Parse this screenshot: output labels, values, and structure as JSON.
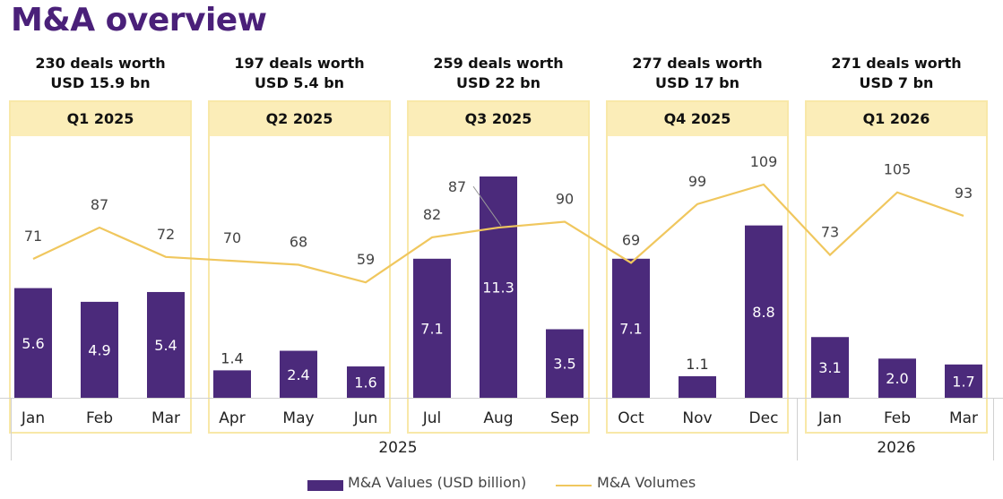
{
  "title": "M&A overview",
  "quarters": [
    {
      "label": "Q1 2025",
      "summary_line1": "230 deals worth",
      "summary_line2": "USD 15.9 bn"
    },
    {
      "label": "Q2 2025",
      "summary_line1": "197 deals worth",
      "summary_line2": "USD 5.4 bn"
    },
    {
      "label": "Q3 2025",
      "summary_line1": "259 deals worth",
      "summary_line2": "USD 22 bn"
    },
    {
      "label": "Q4 2025",
      "summary_line1": "277 deals worth",
      "summary_line2": "USD 17 bn"
    },
    {
      "label": "Q1 2026",
      "summary_line1": "271 deals worth",
      "summary_line2": "USD 7 bn"
    }
  ],
  "years": [
    "2025",
    "2026"
  ],
  "legend": {
    "bar_label": "M&A Values (USD billion)",
    "line_label": "M&A Volumes"
  },
  "colors": {
    "bar": "#4b2a7b",
    "line": "#f0c75e",
    "box_border": "#f8e8a8",
    "box_header": "#fbedb8",
    "title": "#4a2079"
  },
  "chart_data": {
    "type": "bar+line",
    "categories": [
      "Jan",
      "Feb",
      "Mar",
      "Apr",
      "May",
      "Jun",
      "Jul",
      "Aug",
      "Sep",
      "Oct",
      "Nov",
      "Dec",
      "Jan",
      "Feb",
      "Mar"
    ],
    "series": [
      {
        "name": "M&A Values (USD billion)",
        "type": "bar",
        "values": [
          "5.6",
          "4.9",
          "5.4",
          "1.4",
          "2.4",
          "1.6",
          "7.1",
          "11.3",
          "3.5",
          "7.1",
          "1.1",
          "8.8",
          "3.1",
          "2.0",
          "1.7"
        ]
      },
      {
        "name": "M&A Volumes",
        "type": "line",
        "values": [
          71,
          87,
          72,
          70,
          68,
          59,
          82,
          87,
          90,
          69,
          99,
          109,
          73,
          105,
          93
        ]
      }
    ],
    "bar_ylim": [
      0,
      12.4
    ],
    "line_ylim": [
      0,
      131
    ]
  }
}
